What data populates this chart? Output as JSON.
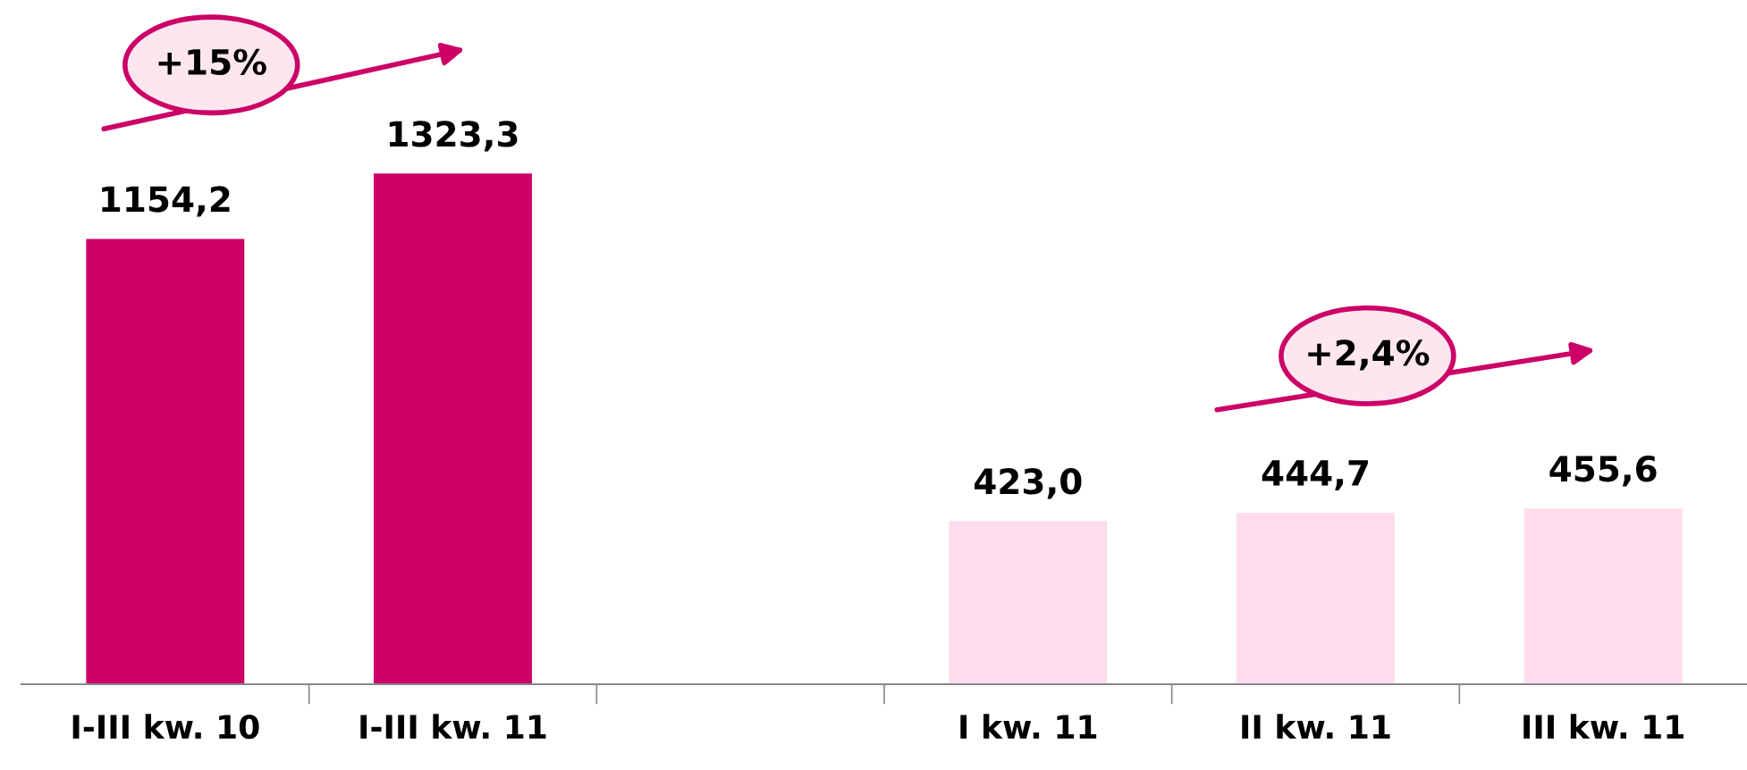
{
  "chart_data": {
    "type": "bar",
    "categories": [
      "I-III kw. 10",
      "I-III kw. 11",
      null,
      "I kw. 11",
      "II kw. 11",
      "III kw. 11"
    ],
    "values": [
      1154.2,
      1323.3,
      null,
      423.0,
      444.7,
      455.6
    ],
    "colors": [
      "#cc0066",
      "#cc0066",
      "#cc0066",
      "#ffdced",
      "#ffdced",
      "#ffdced"
    ],
    "value_labels": [
      "1154,2",
      "1323,3",
      null,
      "423,0",
      "444,7",
      "455,6"
    ],
    "annotations": [
      "+15%",
      "+2,4%"
    ],
    "grid": false,
    "legend": false
  }
}
